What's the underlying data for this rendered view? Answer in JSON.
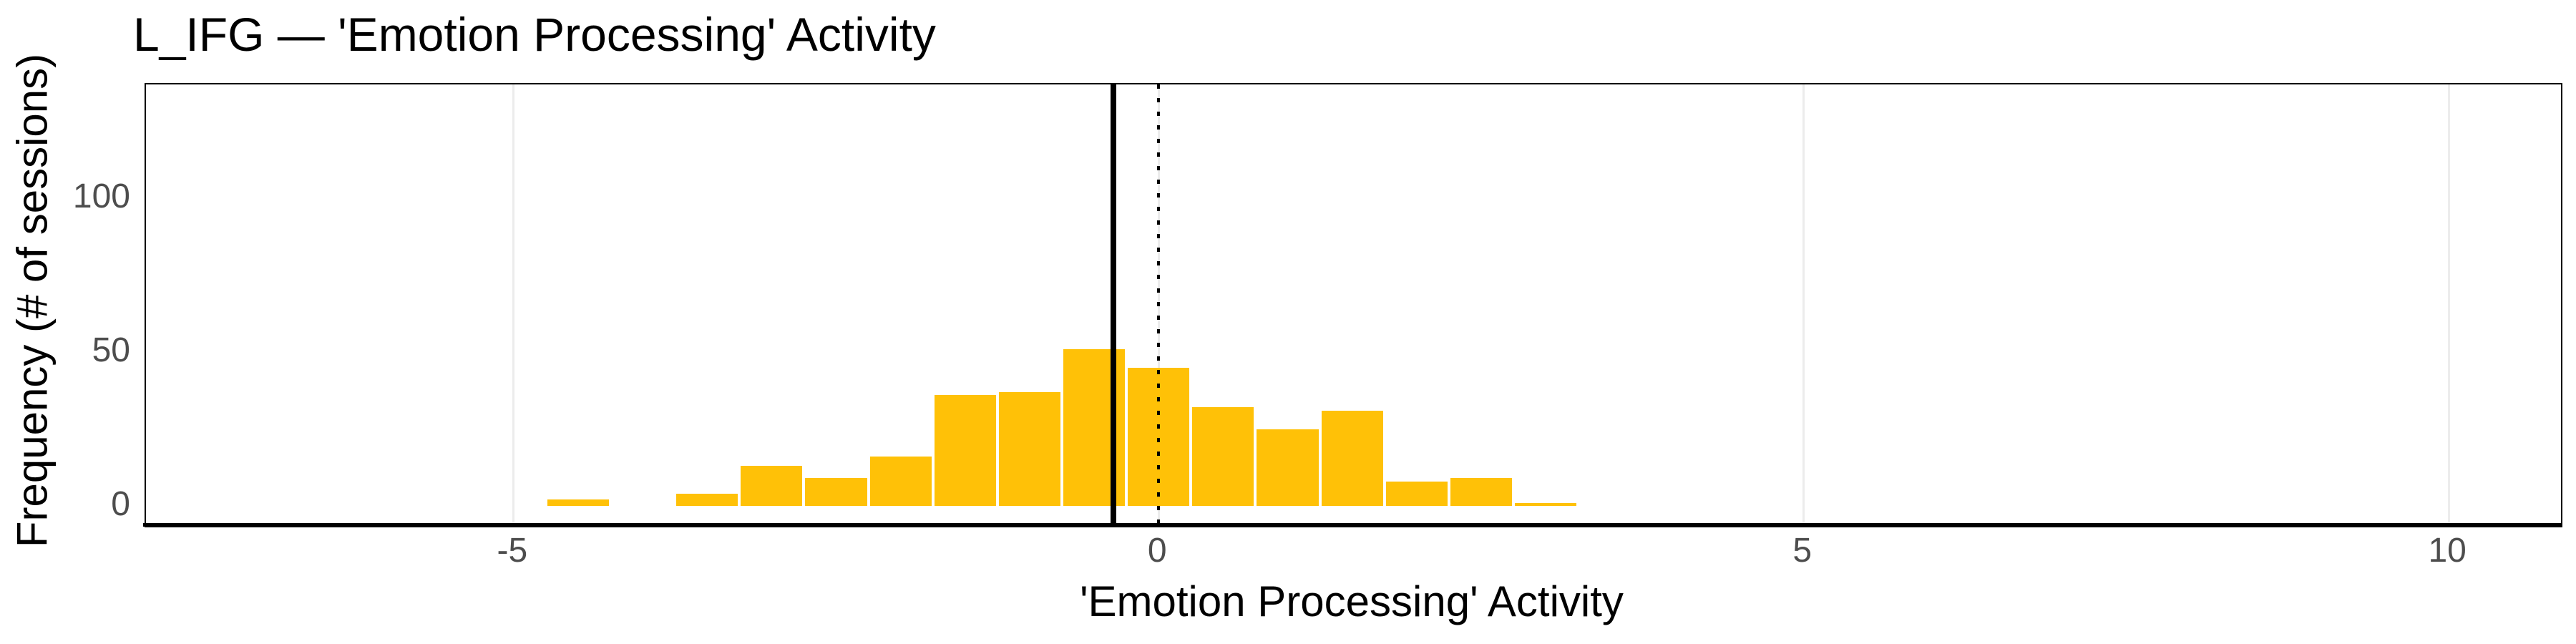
{
  "figure": {
    "title": "L_IFG — 'Emotion Processing' Activity",
    "x_axis_label": "'Emotion Processing' Activity",
    "y_axis_label": "Frequency (# of sessions)"
  },
  "chart_data": {
    "type": "bar",
    "subtype": "histogram",
    "title": "L_IFG — 'Emotion Processing' Activity",
    "xlabel": "'Emotion Processing' Activity",
    "ylabel": "Frequency (# of sessions)",
    "bin_width": 0.5,
    "bin_edges": [
      -4.75,
      -4.25,
      -3.75,
      -3.25,
      -2.75,
      -2.25,
      -1.75,
      -1.25,
      -0.75,
      -0.25,
      0.25,
      0.75,
      1.25,
      1.75,
      2.25,
      2.75,
      3.25
    ],
    "counts": [
      2,
      0,
      4,
      13,
      9,
      16,
      36,
      37,
      51,
      45,
      32,
      25,
      31,
      8,
      9,
      1
    ],
    "total_sessions": 319,
    "x_ticks": [
      -5,
      0,
      5,
      10
    ],
    "x_tick_labels": [
      "-5",
      "0",
      "5",
      "10"
    ],
    "y_ticks": [
      0,
      50,
      100
    ],
    "y_tick_labels": [
      "0",
      "50",
      "100"
    ],
    "xlim": [
      -7.85,
      10.87
    ],
    "ylim": [
      -6.5,
      137
    ],
    "grid": "vertical-major-only",
    "legend_position": "none",
    "reference_lines": [
      {
        "x": -0.35,
        "style": "solid",
        "color": "#000000"
      },
      {
        "x": 0,
        "style": "dotted",
        "color": "#000000"
      }
    ],
    "bar_color": "#FFC107",
    "gridline_color": "#ececec",
    "tick_label_color": "#4d4d4d",
    "axis_color": "#000000"
  }
}
